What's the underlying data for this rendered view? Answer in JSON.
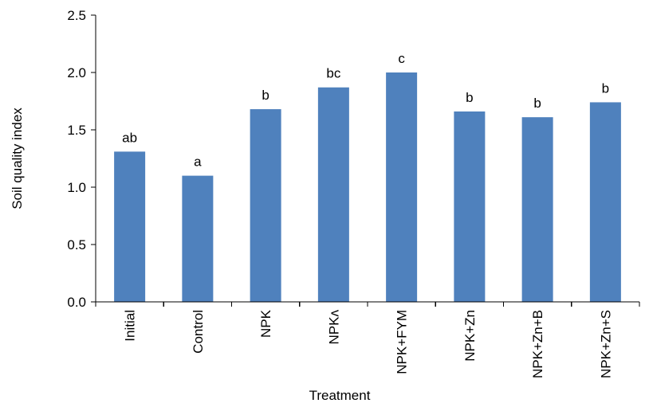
{
  "chart_data": {
    "type": "bar",
    "title": "",
    "xlabel": "Treatment",
    "ylabel": "Soil quality index",
    "categories": [
      "Initial",
      "Control",
      "NPK",
      "NPKʌ",
      "NPK+FYM",
      "NPK+Zn",
      "NPK+Zn+B",
      "NPK+Zn+S"
    ],
    "values": [
      1.31,
      1.1,
      1.68,
      1.87,
      2.0,
      1.66,
      1.61,
      1.74
    ],
    "annotations": [
      "ab",
      "a",
      "b",
      "bc",
      "c",
      "b",
      "b",
      "b"
    ],
    "ylim": [
      0,
      2.5
    ],
    "yticks": [
      "0.0",
      "0.5",
      "1.0",
      "1.5",
      "2.0",
      "2.5"
    ],
    "bar_color": "#4F81BD",
    "grid": false,
    "legend": "none"
  }
}
